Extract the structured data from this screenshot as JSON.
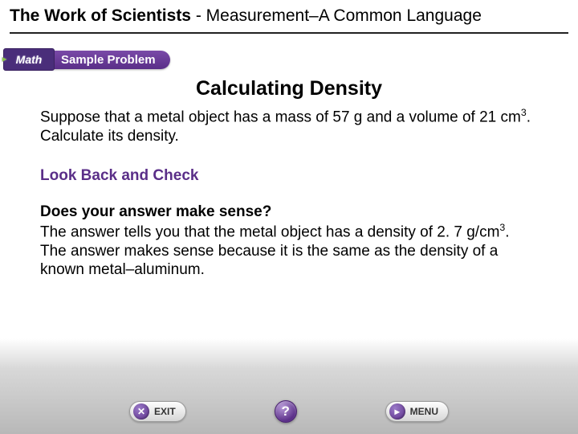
{
  "header": {
    "chapter_bold": "The Work of Scientists",
    "separator": " - ",
    "section": "Measurement–A Common Language"
  },
  "badge": {
    "math_label": "Math",
    "pill_label": "Sample Problem"
  },
  "content": {
    "title": "Calculating Density",
    "problem_pre": "Suppose that a metal object has a mass of 57 g and a volume of 21 cm",
    "problem_sup": "3",
    "problem_post": ". Calculate its density.",
    "section_head": "Look Back and Check",
    "question": "Does your answer make sense?",
    "answer_pre": "The answer tells you that the metal object has a density of 2. 7 g/cm",
    "answer_sup": "3",
    "answer_post": ". The answer makes sense because it is the same as the density of a known metal–aluminum."
  },
  "footer": {
    "exit_label": "EXIT",
    "exit_icon": "✕",
    "help_icon": "?",
    "menu_label": "MENU",
    "menu_icon": "▸"
  },
  "colors": {
    "accent": "#5a2e88",
    "header_rule": "#222222"
  }
}
